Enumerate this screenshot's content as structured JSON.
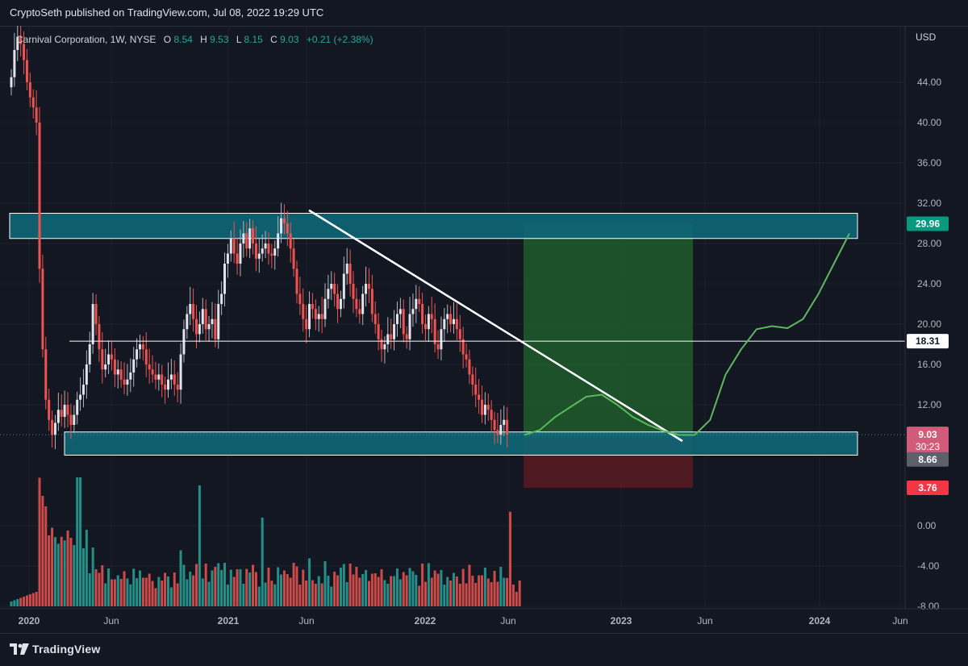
{
  "header": {
    "publish_text": "CryptoSeth published on TradingView.com, Jul 08, 2022 19:29 UTC"
  },
  "legend": {
    "symbol": "Carnival Corporation, 1W, NYSE",
    "open_label": "O",
    "open_value": "8.54",
    "high_label": "H",
    "high_value": "9.53",
    "low_label": "L",
    "low_value": "8.15",
    "close_label": "C",
    "close_value": "9.03",
    "change": "+0.21 (+2.38%)"
  },
  "footer": {
    "brand": "TradingView"
  },
  "colors": {
    "background": "#131722",
    "up": "#26a69a",
    "down": "#ef5350",
    "zone": "#0e6677",
    "profit": "#1e5c2c",
    "loss": "#5a1a22",
    "projection": "#5cb85c"
  },
  "chart_data": {
    "type": "candlestick",
    "symbol": "Carnival Corporation",
    "interval": "1W",
    "exchange": "NYSE",
    "currency": "USD",
    "price_axis": {
      "min": -8,
      "max": 48,
      "ticks": [
        "44.00",
        "40.00",
        "36.00",
        "32.00",
        "28.00",
        "24.00",
        "20.00",
        "16.00",
        "12.00",
        "0.00",
        "-4.00",
        "-8.00"
      ]
    },
    "time_axis": {
      "labels": [
        "2020",
        "Jun",
        "2021",
        "Jun",
        "2022",
        "Jun",
        "2023",
        "Jun",
        "2024",
        "Jun"
      ]
    },
    "price_labels": {
      "target": "29.96",
      "level": "18.31",
      "current": "9.03",
      "countdown": "30:23",
      "entry": "8.66",
      "stop": "3.76"
    },
    "zones": [
      {
        "name": "resistance",
        "low": 28.5,
        "high": 31.0
      },
      {
        "name": "support",
        "low": 7.0,
        "high": 9.3
      }
    ],
    "horizontal_line": 18.31,
    "trendline": {
      "from": 31.3,
      "to": 8.4
    },
    "position": {
      "entry": 8.66,
      "target": 29.96,
      "stop": 3.76
    },
    "closes": [
      44.5,
      47.2,
      48.5,
      47.8,
      46.2,
      44.0,
      42.5,
      41.5,
      40.0,
      25.5,
      17.5,
      12.5,
      10.5,
      9.0,
      10.2,
      11.5,
      10.8,
      12.0,
      11.0,
      10.0,
      11.0,
      12.5,
      13.0,
      14.0,
      16.0,
      18.0,
      22.0,
      20.0,
      17.5,
      15.5,
      16.0,
      17.0,
      16.5,
      15.0,
      15.5,
      14.5,
      14.0,
      14.5,
      15.2,
      16.5,
      17.5,
      18.0,
      17.5,
      16.0,
      15.5,
      15.0,
      14.5,
      15.0,
      14.0,
      13.5,
      14.5,
      15.0,
      14.0,
      13.5,
      17.0,
      19.5,
      21.0,
      22.0,
      20.5,
      19.0,
      20.0,
      21.5,
      19.5,
      20.0,
      20.5,
      18.5,
      22.0,
      23.0,
      26.0,
      27.0,
      28.5,
      27.0,
      26.0,
      28.0,
      29.0,
      27.5,
      29.5,
      28.0,
      26.5,
      27.0,
      27.5,
      28.0,
      27.0,
      26.8,
      27.5,
      29.0,
      30.5,
      30.0,
      29.0,
      27.5,
      25.5,
      23.0,
      22.0,
      20.5,
      19.5,
      22.0,
      21.5,
      20.5,
      21.0,
      20.5,
      22.5,
      23.5,
      24.0,
      23.0,
      21.5,
      22.5,
      25.0,
      26.0,
      24.0,
      22.5,
      21.5,
      21.0,
      23.0,
      24.0,
      23.5,
      21.0,
      20.0,
      18.5,
      17.5,
      18.0,
      19.0,
      18.5,
      20.0,
      21.0,
      21.5,
      19.0,
      18.5,
      21.0,
      21.5,
      22.5,
      22.0,
      20.0,
      19.5,
      21.0,
      20.5,
      18.0,
      17.5,
      19.5,
      20.5,
      21.0,
      20.0,
      20.5,
      19.5,
      18.5,
      17.0,
      16.5,
      15.0,
      14.0,
      13.0,
      12.5,
      11.0,
      12.0,
      11.5,
      10.5,
      9.5,
      9.0,
      10.0,
      10.5,
      9.03
    ],
    "projection": [
      9.0,
      9.5,
      10.8,
      11.8,
      12.8,
      13.0,
      12.0,
      10.8,
      10.0,
      9.4,
      9.0,
      9.0,
      10.5,
      15.0,
      17.5,
      19.5,
      19.8,
      19.6,
      20.5,
      23.0,
      26.0,
      29.0
    ],
    "volume_bars": 163
  }
}
